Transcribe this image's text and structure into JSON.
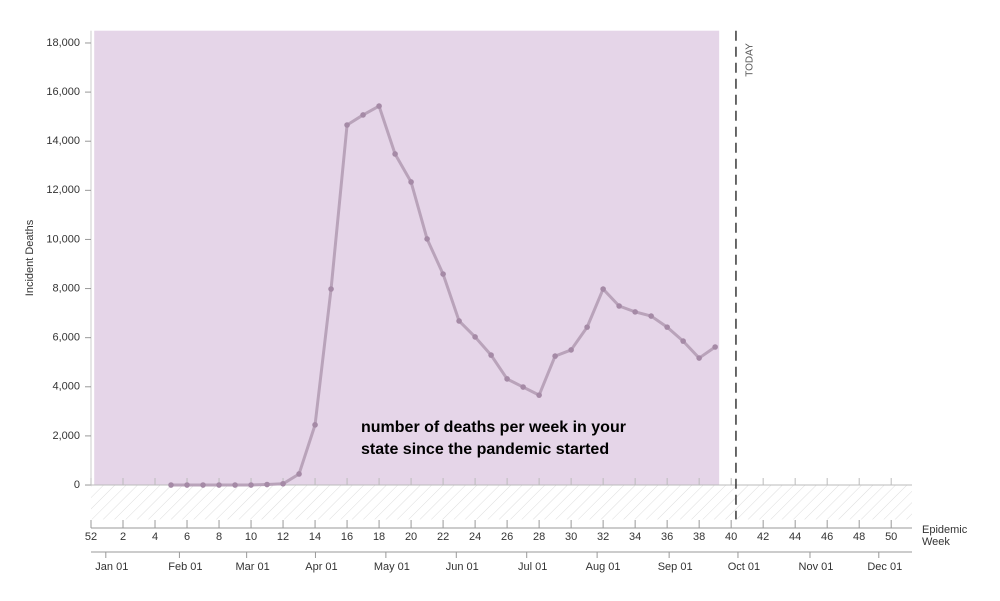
{
  "chart_data": {
    "type": "line",
    "y_label": "Incident Deaths",
    "x_label": [
      "Epidemic",
      "Week"
    ],
    "annotation": [
      "number of deaths per week in your",
      "state since the pandemic started"
    ],
    "today_label": "TODAY",
    "today_x": 40.3,
    "shaded_x": [
      0.2,
      39.25
    ],
    "x": [
      5,
      6,
      7,
      8,
      9,
      10,
      11,
      12,
      13,
      14,
      15,
      16,
      17,
      18,
      19,
      20,
      21,
      22,
      23,
      24,
      25,
      26,
      27,
      28,
      29,
      30,
      31,
      32,
      33,
      34,
      35,
      36,
      37,
      38,
      39
    ],
    "series": [
      {
        "name": "Incident Deaths",
        "color": "#b9a3ba",
        "point_color": "#a58aa6",
        "values": [
          0,
          0,
          0,
          0,
          0,
          0,
          20,
          50,
          450,
          2450,
          7980,
          14660,
          15070,
          15430,
          13480,
          12340,
          10020,
          8590,
          6680,
          6030,
          5290,
          4320,
          3990,
          3660,
          5250,
          5500,
          6430,
          7980,
          7290,
          7050,
          6880,
          6430,
          5860,
          5170,
          5620
        ]
      }
    ],
    "shade_color": "#e5d5e8",
    "xlim": [
      0,
      51.3
    ],
    "ylim": [
      -1400,
      18500
    ],
    "yticks": [
      0,
      {
        "value": 2000,
        "label": "2,000"
      },
      {
        "value": 4000,
        "label": "4,000"
      },
      {
        "value": 6000,
        "label": "6,000"
      },
      {
        "value": 8000,
        "label": "8,000"
      },
      {
        "value": 10000,
        "label": "10,000"
      },
      {
        "value": 12000,
        "label": "12,000"
      },
      {
        "value": 14000,
        "label": "14,000"
      },
      {
        "value": 16000,
        "label": "16,000"
      },
      {
        "value": 18000,
        "label": "18,000"
      }
    ],
    "xticks": [
      {
        "value": 0,
        "label": "52"
      },
      2,
      4,
      6,
      8,
      10,
      12,
      14,
      16,
      18,
      20,
      22,
      24,
      26,
      28,
      30,
      32,
      34,
      36,
      38,
      40,
      42,
      44,
      46,
      48,
      50
    ],
    "month_ticks": [
      {
        "value": 1.3,
        "label": "Jan 01"
      },
      {
        "value": 5.9,
        "label": "Feb 01"
      },
      {
        "value": 10.1,
        "label": "Mar 01"
      },
      {
        "value": 14.4,
        "label": "Apr 01"
      },
      {
        "value": 18.8,
        "label": "May 01"
      },
      {
        "value": 23.2,
        "label": "Jun 01"
      },
      {
        "value": 27.6,
        "label": "Jul 01"
      },
      {
        "value": 32.0,
        "label": "Aug 01"
      },
      {
        "value": 36.5,
        "label": "Sep 01"
      },
      {
        "value": 40.8,
        "label": "Oct 01"
      },
      {
        "value": 45.3,
        "label": "Nov 01"
      },
      {
        "value": 49.6,
        "label": "Dec 01"
      }
    ]
  }
}
